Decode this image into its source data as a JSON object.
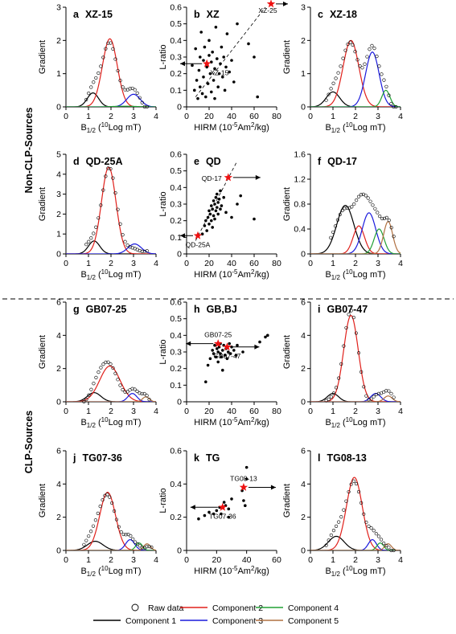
{
  "figure": {
    "group_labels": [
      "Non-CLP-Sources",
      "CLP-Sources"
    ],
    "legend": [
      {
        "name": "Raw data",
        "symbol": "circle"
      },
      {
        "name": "Component 1",
        "color": "#000000"
      },
      {
        "name": "Component 2",
        "color": "#e0201b"
      },
      {
        "name": "Component 3",
        "color": "#1a1adc"
      },
      {
        "name": "Component 4",
        "color": "#21a035"
      },
      {
        "name": "Component 5",
        "color": "#b07040"
      }
    ],
    "star_color": "#ee1111"
  },
  "chart_data": [
    {
      "type": "line",
      "letter": "a",
      "title": "XZ-15",
      "xlabel": "B1/2 (10Log mT)",
      "ylabel": "Gradient",
      "xlim": [
        0,
        4
      ],
      "ylim": [
        0,
        3
      ],
      "xticks": [
        0,
        1,
        2,
        3,
        4
      ],
      "yticks": [
        0,
        1,
        2,
        3
      ],
      "components": [
        {
          "name": "Component 1",
          "color": "#000000",
          "mu": 1.2,
          "sigma": 0.25,
          "amp": 0.42
        },
        {
          "name": "Component 2",
          "color": "#e0201b",
          "mu": 1.95,
          "sigma": 0.33,
          "amp": 2.05
        },
        {
          "name": "Component 3",
          "color": "#1a1adc",
          "mu": 3.0,
          "sigma": 0.3,
          "amp": 0.38
        },
        {
          "name": "Component 4",
          "color": "#21a035",
          "mu": 2.6,
          "sigma": 0.5,
          "amp": 0.02
        }
      ],
      "raw": {
        "x_start": 0.9,
        "x_end": 3.6,
        "n": 26
      }
    },
    {
      "type": "scatter",
      "letter": "b",
      "title": "XZ",
      "xlabel": "HIRM (10-5Am2/kg)",
      "ylabel": "L-ratio",
      "xlim": [
        0,
        80
      ],
      "ylim": [
        0,
        0.6
      ],
      "xticks": [
        0,
        20,
        40,
        60,
        80
      ],
      "yticks": [
        0,
        0.1,
        0.2,
        0.3,
        0.4,
        0.5,
        0.6
      ],
      "points": [
        [
          5,
          0.25
        ],
        [
          7,
          0.1
        ],
        [
          8,
          0.35
        ],
        [
          9,
          0.16
        ],
        [
          10,
          0.05
        ],
        [
          11,
          0.22
        ],
        [
          12,
          0.3
        ],
        [
          12,
          0.12
        ],
        [
          13,
          0.45
        ],
        [
          14,
          0.08
        ],
        [
          15,
          0.28
        ],
        [
          15,
          0.18
        ],
        [
          16,
          0.36
        ],
        [
          17,
          0.06
        ],
        [
          18,
          0.24
        ],
        [
          19,
          0.14
        ],
        [
          20,
          0.31
        ],
        [
          20,
          0.4
        ],
        [
          21,
          0.2
        ],
        [
          22,
          0.09
        ],
        [
          22,
          0.27
        ],
        [
          23,
          0.33
        ],
        [
          24,
          0.16
        ],
        [
          25,
          0.23
        ],
        [
          25,
          0.05
        ],
        [
          26,
          0.48
        ],
        [
          27,
          0.29
        ],
        [
          28,
          0.12
        ],
        [
          29,
          0.2
        ],
        [
          30,
          0.26
        ],
        [
          31,
          0.36
        ],
        [
          32,
          0.18
        ],
        [
          33,
          0.3
        ],
        [
          34,
          0.1
        ],
        [
          35,
          0.24
        ],
        [
          36,
          0.44
        ],
        [
          38,
          0.21
        ],
        [
          40,
          0.28
        ],
        [
          42,
          0.15
        ],
        [
          45,
          0.5
        ],
        [
          55,
          0.38
        ],
        [
          60,
          0.3
        ],
        [
          63,
          0.06
        ]
      ],
      "stars": [
        {
          "label": "XZ-15",
          "x": 18,
          "y": 0.26,
          "arrow": "left"
        },
        {
          "label": "XZ-25",
          "x": 75,
          "y": 0.62,
          "arrow": "right"
        }
      ],
      "trend": [
        [
          8,
          0.06
        ],
        [
          70,
          0.6
        ]
      ]
    },
    {
      "type": "line",
      "letter": "c",
      "title": "XZ-18",
      "xlabel": "B1/2 (10Log mT)",
      "ylabel": "Gradient",
      "xlim": [
        0,
        4
      ],
      "ylim": [
        0,
        3
      ],
      "xticks": [
        0,
        1,
        2,
        3,
        4
      ],
      "yticks": [
        0,
        1,
        2,
        3
      ],
      "components": [
        {
          "name": "Component 1",
          "color": "#000000",
          "mu": 1.0,
          "sigma": 0.3,
          "amp": 0.45
        },
        {
          "name": "Component 2",
          "color": "#e0201b",
          "mu": 1.8,
          "sigma": 0.35,
          "amp": 2.0
        },
        {
          "name": "Component 3",
          "color": "#1a1adc",
          "mu": 2.75,
          "sigma": 0.3,
          "amp": 1.65
        },
        {
          "name": "Component 4",
          "color": "#21a035",
          "mu": 3.35,
          "sigma": 0.18,
          "amp": 0.5
        }
      ],
      "raw": {
        "x_start": 0.7,
        "x_end": 3.8,
        "n": 30
      }
    },
    {
      "type": "line",
      "letter": "d",
      "title": "QD-25A",
      "xlabel": "B1/2 (10Log mT)",
      "ylabel": "Gradient",
      "xlim": [
        0,
        4
      ],
      "ylim": [
        0,
        5
      ],
      "xticks": [
        0,
        1,
        2,
        3,
        4
      ],
      "yticks": [
        0,
        1,
        2,
        3,
        4,
        5
      ],
      "components": [
        {
          "name": "Component 1",
          "color": "#000000",
          "mu": 1.25,
          "sigma": 0.25,
          "amp": 0.65
        },
        {
          "name": "Component 2",
          "color": "#e0201b",
          "mu": 1.9,
          "sigma": 0.32,
          "amp": 4.35
        },
        {
          "name": "Component 3",
          "color": "#1a1adc",
          "mu": 3.05,
          "sigma": 0.3,
          "amp": 0.5
        }
      ],
      "raw": {
        "x_start": 0.9,
        "x_end": 3.6,
        "n": 26
      }
    },
    {
      "type": "scatter",
      "letter": "e",
      "title": "QD",
      "xlabel": "HIRM (10-5Am2/kg)",
      "ylabel": "L-ratio",
      "xlim": [
        0,
        80
      ],
      "ylim": [
        0,
        0.6
      ],
      "xticks": [
        0,
        20,
        40,
        60,
        80
      ],
      "yticks": [
        0,
        0.1,
        0.2,
        0.3,
        0.4,
        0.5,
        0.6
      ],
      "points": [
        [
          14,
          0.12
        ],
        [
          16,
          0.17
        ],
        [
          17,
          0.2
        ],
        [
          18,
          0.14
        ],
        [
          19,
          0.22
        ],
        [
          20,
          0.26
        ],
        [
          20,
          0.18
        ],
        [
          21,
          0.24
        ],
        [
          22,
          0.29
        ],
        [
          22,
          0.2
        ],
        [
          23,
          0.27
        ],
        [
          23,
          0.16
        ],
        [
          24,
          0.32
        ],
        [
          24,
          0.23
        ],
        [
          25,
          0.3
        ],
        [
          25,
          0.21
        ],
        [
          26,
          0.34
        ],
        [
          26,
          0.26
        ],
        [
          27,
          0.28
        ],
        [
          27,
          0.36
        ],
        [
          28,
          0.24
        ],
        [
          28,
          0.31
        ],
        [
          29,
          0.33
        ],
        [
          30,
          0.27
        ],
        [
          30,
          0.38
        ],
        [
          31,
          0.29
        ],
        [
          33,
          0.34
        ],
        [
          35,
          0.25
        ],
        [
          40,
          0.22
        ],
        [
          45,
          0.3
        ],
        [
          48,
          0.35
        ],
        [
          60,
          0.21
        ]
      ],
      "stars": [
        {
          "label": "QD-17",
          "x": 37,
          "y": 0.46,
          "arrow": "right"
        },
        {
          "label": "QD-25A",
          "x": 10,
          "y": 0.11,
          "arrow": "left"
        }
      ],
      "trend": [
        [
          8,
          0.08
        ],
        [
          45,
          0.56
        ]
      ]
    },
    {
      "type": "line",
      "letter": "f",
      "title": "QD-17",
      "xlabel": "B1/2 (10Log mT)",
      "ylabel": "Gradient",
      "xlim": [
        0,
        4
      ],
      "ylim": [
        0,
        1.6
      ],
      "xticks": [
        0,
        1,
        2,
        3,
        4
      ],
      "yticks": [
        0,
        0.4,
        0.8,
        1.2,
        1.6
      ],
      "components": [
        {
          "name": "Component 1",
          "color": "#000000",
          "mu": 1.55,
          "sigma": 0.38,
          "amp": 0.78
        },
        {
          "name": "Component 2",
          "color": "#e0201b",
          "mu": 2.15,
          "sigma": 0.25,
          "amp": 0.45
        },
        {
          "name": "Component 3",
          "color": "#1a1adc",
          "mu": 2.6,
          "sigma": 0.3,
          "amp": 0.66
        },
        {
          "name": "Component 4",
          "color": "#21a035",
          "mu": 3.05,
          "sigma": 0.22,
          "amp": 0.4
        },
        {
          "name": "Component 5",
          "color": "#b07040",
          "mu": 3.45,
          "sigma": 0.2,
          "amp": 0.52
        }
      ],
      "raw": {
        "x_start": 0.9,
        "x_end": 3.7,
        "n": 28
      }
    },
    {
      "type": "line",
      "letter": "g",
      "title": "GB07-25",
      "xlabel": "B1/2 (10Log mT)",
      "ylabel": "Gradient",
      "xlim": [
        0,
        4
      ],
      "ylim": [
        0,
        6
      ],
      "xticks": [
        0,
        1,
        2,
        3,
        4
      ],
      "yticks": [
        0,
        2,
        4,
        6
      ],
      "components": [
        {
          "name": "Component 1",
          "color": "#000000",
          "mu": 1.25,
          "sigma": 0.3,
          "amp": 0.55
        },
        {
          "name": "Component 2",
          "color": "#e0201b",
          "mu": 1.95,
          "sigma": 0.45,
          "amp": 2.15
        },
        {
          "name": "Component 3",
          "color": "#1a1adc",
          "mu": 2.95,
          "sigma": 0.2,
          "amp": 0.5
        },
        {
          "name": "Component 5",
          "color": "#b07040",
          "mu": 3.55,
          "sigma": 0.15,
          "amp": 0.3
        }
      ],
      "raw": {
        "x_start": 0.8,
        "x_end": 3.7,
        "n": 28
      }
    },
    {
      "type": "scatter",
      "letter": "h",
      "title": "GB,BJ",
      "xlabel": "HIRM (10-5Am2/kg)",
      "ylabel": "L-ratio",
      "xlim": [
        0,
        80
      ],
      "ylim": [
        0,
        0.6
      ],
      "xticks": [
        0,
        20,
        40,
        60,
        80
      ],
      "yticks": [
        0,
        0.1,
        0.2,
        0.3,
        0.4,
        0.5,
        0.6
      ],
      "points": [
        [
          17,
          0.12
        ],
        [
          19,
          0.22
        ],
        [
          21,
          0.26
        ],
        [
          23,
          0.31
        ],
        [
          24,
          0.29
        ],
        [
          25,
          0.34
        ],
        [
          26,
          0.27
        ],
        [
          27,
          0.32
        ],
        [
          28,
          0.3
        ],
        [
          28,
          0.24
        ],
        [
          29,
          0.33
        ],
        [
          30,
          0.29
        ],
        [
          30,
          0.35
        ],
        [
          31,
          0.27
        ],
        [
          32,
          0.31
        ],
        [
          32,
          0.19
        ],
        [
          33,
          0.34
        ],
        [
          34,
          0.28
        ],
        [
          35,
          0.32
        ],
        [
          36,
          0.26
        ],
        [
          37,
          0.3
        ],
        [
          38,
          0.35
        ],
        [
          39,
          0.29
        ],
        [
          40,
          0.33
        ],
        [
          42,
          0.31
        ],
        [
          44,
          0.28
        ],
        [
          45,
          0.34
        ],
        [
          50,
          0.3
        ],
        [
          65,
          0.36
        ],
        [
          70,
          0.39
        ],
        [
          72,
          0.4
        ]
      ],
      "stars": [
        {
          "label": "GB07-25",
          "x": 28,
          "y": 0.35,
          "arrow": "left"
        },
        {
          "label": "GB07-47",
          "x": 36,
          "y": 0.33,
          "arrow": "right"
        }
      ],
      "trend": null
    },
    {
      "type": "line",
      "letter": "i",
      "title": "GB07-47",
      "xlabel": "B1/2 (10Log mT)",
      "ylabel": "Gradient",
      "xlim": [
        0,
        4
      ],
      "ylim": [
        0,
        6
      ],
      "xticks": [
        0,
        1,
        2,
        3,
        4
      ],
      "yticks": [
        0,
        2,
        4,
        6
      ],
      "components": [
        {
          "name": "Component 1",
          "color": "#000000",
          "mu": 1.0,
          "sigma": 0.25,
          "amp": 0.5
        },
        {
          "name": "Component 2",
          "color": "#e0201b",
          "mu": 1.8,
          "sigma": 0.32,
          "amp": 5.2
        },
        {
          "name": "Component 3",
          "color": "#1a1adc",
          "mu": 2.9,
          "sigma": 0.22,
          "amp": 0.5
        },
        {
          "name": "Component 5",
          "color": "#b07040",
          "mu": 3.45,
          "sigma": 0.18,
          "amp": 0.35
        }
      ],
      "raw": {
        "x_start": 0.7,
        "x_end": 3.7,
        "n": 28
      }
    },
    {
      "type": "line",
      "letter": "j",
      "title": "TG07-36",
      "xlabel": "B1/2 (10Log mT)",
      "ylabel": "Gradient",
      "xlim": [
        0,
        4
      ],
      "ylim": [
        0,
        6
      ],
      "xticks": [
        0,
        1,
        2,
        3,
        4
      ],
      "yticks": [
        0,
        2,
        4,
        6
      ],
      "components": [
        {
          "name": "Component 1",
          "color": "#000000",
          "mu": 1.3,
          "sigma": 0.35,
          "amp": 0.55
        },
        {
          "name": "Component 2",
          "color": "#e0201b",
          "mu": 1.85,
          "sigma": 0.35,
          "amp": 3.5
        },
        {
          "name": "Component 3",
          "color": "#1a1adc",
          "mu": 2.85,
          "sigma": 0.2,
          "amp": 0.65
        },
        {
          "name": "Component 4",
          "color": "#21a035",
          "mu": 3.25,
          "sigma": 0.15,
          "amp": 0.45
        },
        {
          "name": "Component 5",
          "color": "#b07040",
          "mu": 3.6,
          "sigma": 0.15,
          "amp": 0.4
        }
      ],
      "raw": {
        "x_start": 0.8,
        "x_end": 3.8,
        "n": 30
      }
    },
    {
      "type": "scatter",
      "letter": "k",
      "title": "TG",
      "xlabel": "HIRM (10-5Am2/kg)",
      "ylabel": "L-ratio",
      "xlim": [
        0,
        60
      ],
      "ylim": [
        0,
        0.6
      ],
      "xticks": [
        0,
        20,
        40,
        60
      ],
      "yticks": [
        0,
        0.2,
        0.4,
        0.6
      ],
      "points": [
        [
          8,
          0.19
        ],
        [
          12,
          0.21
        ],
        [
          15,
          0.23
        ],
        [
          18,
          0.22
        ],
        [
          20,
          0.24
        ],
        [
          22,
          0.26
        ],
        [
          23,
          0.22
        ],
        [
          25,
          0.29
        ],
        [
          26,
          0.27
        ],
        [
          28,
          0.25
        ],
        [
          28,
          0.2
        ],
        [
          30,
          0.31
        ],
        [
          37,
          0.36
        ],
        [
          38,
          0.3
        ],
        [
          39,
          0.27
        ],
        [
          40,
          0.5
        ],
        [
          40,
          0.43
        ]
      ],
      "stars": [
        {
          "label": "TG08-13",
          "x": 38,
          "y": 0.38,
          "arrow": "right"
        },
        {
          "label": "TG07-36",
          "x": 24,
          "y": 0.26,
          "arrow": "left"
        }
      ],
      "trend": null
    },
    {
      "type": "line",
      "letter": "l",
      "title": "TG08-13",
      "xlabel": "B1/2 (10Log mT)",
      "ylabel": "Gradient",
      "xlim": [
        0,
        4
      ],
      "ylim": [
        0,
        6
      ],
      "xticks": [
        0,
        1,
        2,
        3,
        4
      ],
      "yticks": [
        0,
        2,
        4,
        6
      ],
      "components": [
        {
          "name": "Component 1",
          "color": "#000000",
          "mu": 1.15,
          "sigma": 0.35,
          "amp": 0.85
        },
        {
          "name": "Component 2",
          "color": "#e0201b",
          "mu": 1.95,
          "sigma": 0.35,
          "amp": 4.4
        },
        {
          "name": "Component 3",
          "color": "#1a1adc",
          "mu": 2.75,
          "sigma": 0.18,
          "amp": 0.65
        },
        {
          "name": "Component 4",
          "color": "#21a035",
          "mu": 3.1,
          "sigma": 0.15,
          "amp": 0.45
        },
        {
          "name": "Component 5",
          "color": "#b07040",
          "mu": 3.45,
          "sigma": 0.15,
          "amp": 0.4
        }
      ],
      "raw": {
        "x_start": 0.7,
        "x_end": 3.7,
        "n": 28
      }
    }
  ]
}
